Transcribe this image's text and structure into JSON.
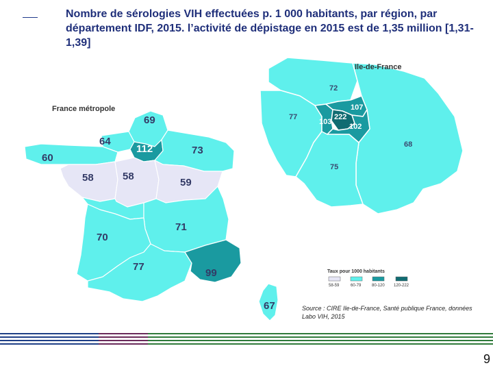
{
  "title": "Nombre de sérologies VIH effectuées p. 1 000 habitants, par région, par département IDF, 2015. l’activité de dépistage en 2015 est de 1,35 million [1,31-1,39]",
  "france_map": {
    "label": "France métropole",
    "regions": [
      {
        "id": "nord-pas-de-calais-picardie",
        "value": "69",
        "fill": "#5ff0ec"
      },
      {
        "id": "haute-normandie",
        "value": "64",
        "fill": "#5ff0ec"
      },
      {
        "id": "basse-normandie",
        "value": "60",
        "fill": "#5ff0ec"
      },
      {
        "id": "ile-de-france",
        "value": "112",
        "fill": "#1a9aa0"
      },
      {
        "id": "alsace-champagne-lorraine",
        "value": "73",
        "fill": "#5ff0ec"
      },
      {
        "id": "bretagne",
        "value": "58",
        "fill": "#e6e6f6"
      },
      {
        "id": "centre",
        "value": "58",
        "fill": "#e6e6f6"
      },
      {
        "id": "bourgogne-franche-comte",
        "value": "59",
        "fill": "#e6e6f6"
      },
      {
        "id": "pays-de-la-loire",
        "value": "",
        "fill": "#5ff0ec"
      },
      {
        "id": "auvergne-rhone-alpes",
        "value": "71",
        "fill": "#5ff0ec"
      },
      {
        "id": "aquitaine-limousin-poitou",
        "value": "70",
        "fill": "#5ff0ec"
      },
      {
        "id": "languedoc-midi-pyrenees",
        "value": "77",
        "fill": "#5ff0ec"
      },
      {
        "id": "paca",
        "value": "99",
        "fill": "#1a9aa0"
      },
      {
        "id": "corse",
        "value": "67",
        "fill": "#5ff0ec"
      }
    ]
  },
  "idf_map": {
    "label": "Ile-de-France",
    "departments": [
      {
        "id": "val-d-oise",
        "value": "72",
        "fill": "#5ff0ec"
      },
      {
        "id": "yvelines",
        "value": "77",
        "fill": "#5ff0ec"
      },
      {
        "id": "seine-et-marne",
        "value": "68",
        "fill": "#5ff0ec"
      },
      {
        "id": "essonne",
        "value": "75",
        "fill": "#5ff0ec"
      },
      {
        "id": "hauts-de-seine",
        "value": "103",
        "fill": "#1a9aa0"
      },
      {
        "id": "paris",
        "value": "222",
        "fill": "#106c72"
      },
      {
        "id": "seine-saint-denis",
        "value": "107",
        "fill": "#1a9aa0"
      },
      {
        "id": "val-de-marne",
        "value": "102",
        "fill": "#1a9aa0"
      }
    ]
  },
  "legend": {
    "title": "Taux pour 1000 habitants",
    "items": [
      {
        "label": "58-59",
        "color": "#e6e6f6"
      },
      {
        "label": "60-79",
        "color": "#5ff0ec"
      },
      {
        "label": "80-120",
        "color": "#1a9aa0"
      },
      {
        "label": "120-222",
        "color": "#106c72"
      }
    ]
  },
  "source": "Source : CIRE Ile-de-France, Santé publique France, données Labo VIH, 2015",
  "page_number": "9",
  "colors": {
    "title_text": "#1f2f7a",
    "low": "#e6e6f6",
    "mid": "#5ff0ec",
    "high": "#1a9aa0",
    "very_high": "#106c72",
    "stripe_blue": "#1e3f86",
    "stripe_purple": "#6a2a5a",
    "stripe_green": "#2f7a3a"
  }
}
